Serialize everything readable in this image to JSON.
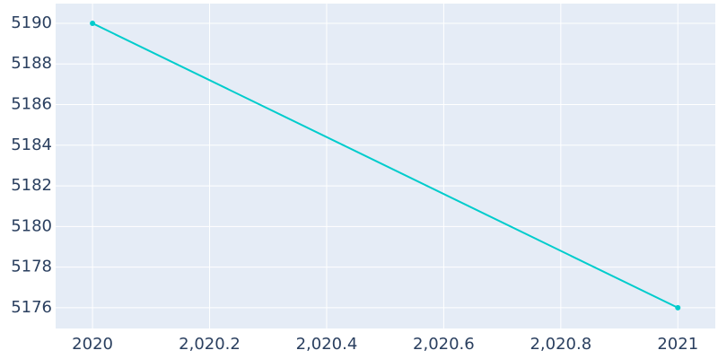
{
  "chart_data": {
    "type": "line",
    "x": [
      2020,
      2021
    ],
    "series": [
      {
        "color": "#00cccc",
        "values": [
          5190,
          5176
        ]
      }
    ],
    "xlim": [
      2019.937,
      2021.064
    ],
    "xticks": [
      2020,
      {
        "value": 2020.2,
        "label": "2,020.2"
      },
      {
        "value": 2020.4,
        "label": "2,020.4"
      },
      {
        "value": 2020.6,
        "label": "2,020.6"
      },
      {
        "value": 2020.8,
        "label": "2,020.8"
      },
      2021
    ],
    "ylim": [
      5174.98,
      5190.97
    ],
    "yticks": [
      5176,
      5178,
      5180,
      5182,
      5184,
      5186,
      5188,
      5190
    ],
    "grid": true,
    "background": "#e5ecf6"
  }
}
